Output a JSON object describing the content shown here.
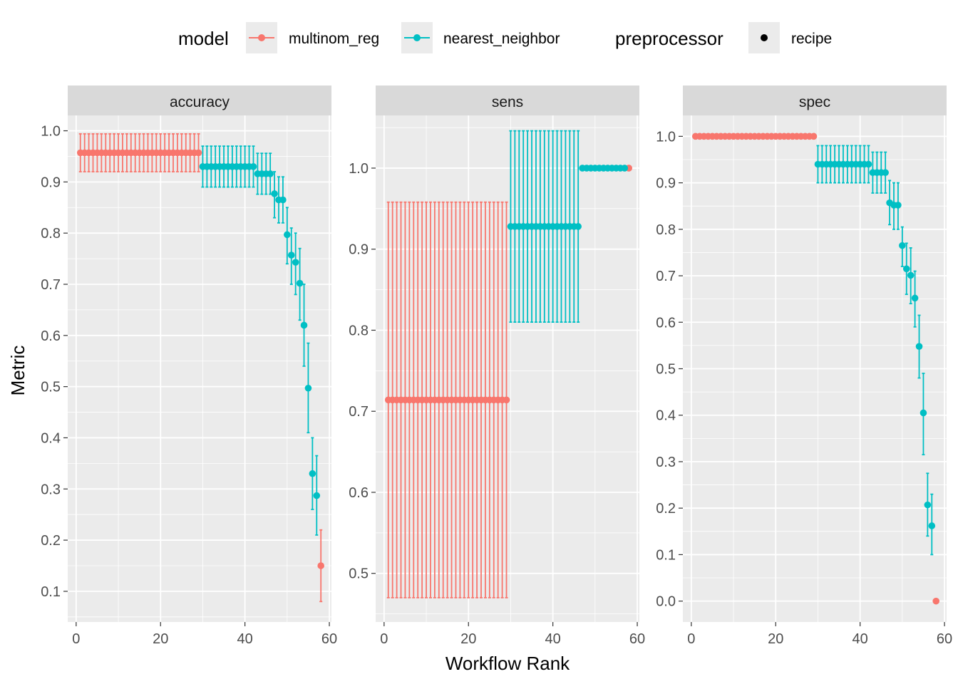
{
  "legend": {
    "model_title": "model",
    "model_items": [
      {
        "label": "multinom_reg",
        "color": "#F8766D"
      },
      {
        "label": "nearest_neighbor",
        "color": "#00BFC4"
      }
    ],
    "preprocessor_title": "preprocessor",
    "preprocessor_items": [
      {
        "label": "recipe",
        "color": "#000000"
      }
    ],
    "placement": "top"
  },
  "axis": {
    "xlabel": "Workflow Rank",
    "ylabel": "Metric"
  },
  "chart_data": [
    {
      "type": "scatter",
      "title": "accuracy",
      "xlim": [
        -2,
        60.5
      ],
      "ylim": [
        0.04,
        1.03
      ],
      "xticks": [
        0,
        20,
        40,
        60
      ],
      "yticks": [
        0.1,
        0.2,
        0.3,
        0.4,
        0.5,
        0.6,
        0.7,
        0.8,
        0.9,
        1.0
      ],
      "grid": true,
      "series": [
        {
          "name": "multinom_reg",
          "color": "#F8766D",
          "points": [
            {
              "x_from": 1,
              "x_to": 29,
              "y": 0.957,
              "lo": 0.92,
              "hi": 0.994
            },
            {
              "x": 58,
              "y": 0.15,
              "lo": 0.08,
              "hi": 0.22
            }
          ]
        },
        {
          "name": "nearest_neighbor",
          "color": "#00BFC4",
          "points": [
            {
              "x_from": 30,
              "x_to": 42,
              "y": 0.93,
              "lo": 0.89,
              "hi": 0.97
            },
            {
              "x_from": 43,
              "x_to": 46,
              "y": 0.916,
              "lo": 0.876,
              "hi": 0.956
            },
            {
              "x": 47,
              "y": 0.877,
              "lo": 0.83,
              "hi": 0.92
            },
            {
              "x": 48,
              "y": 0.865,
              "lo": 0.82,
              "hi": 0.91
            },
            {
              "x": 49,
              "y": 0.865,
              "lo": 0.82,
              "hi": 0.91
            },
            {
              "x": 50,
              "y": 0.797,
              "lo": 0.74,
              "hi": 0.85
            },
            {
              "x": 51,
              "y": 0.757,
              "lo": 0.7,
              "hi": 0.81
            },
            {
              "x": 52,
              "y": 0.743,
              "lo": 0.68,
              "hi": 0.8
            },
            {
              "x": 53,
              "y": 0.702,
              "lo": 0.63,
              "hi": 0.77
            },
            {
              "x": 54,
              "y": 0.62,
              "lo": 0.54,
              "hi": 0.7
            },
            {
              "x": 55,
              "y": 0.497,
              "lo": 0.41,
              "hi": 0.585
            },
            {
              "x": 56,
              "y": 0.33,
              "lo": 0.26,
              "hi": 0.4
            },
            {
              "x": 57,
              "y": 0.287,
              "lo": 0.21,
              "hi": 0.365
            }
          ]
        }
      ]
    },
    {
      "type": "scatter",
      "title": "sens",
      "xlim": [
        -2,
        60.5
      ],
      "ylim": [
        0.44,
        1.065
      ],
      "xticks": [
        0,
        20,
        40,
        60
      ],
      "yticks": [
        0.5,
        0.6,
        0.7,
        0.8,
        0.9,
        1.0
      ],
      "grid": true,
      "series": [
        {
          "name": "multinom_reg",
          "color": "#F8766D",
          "points": [
            {
              "x_from": 1,
              "x_to": 29,
              "y": 0.714,
              "lo": 0.47,
              "hi": 0.958
            },
            {
              "x": 58,
              "y": 1.0
            }
          ]
        },
        {
          "name": "nearest_neighbor",
          "color": "#00BFC4",
          "points": [
            {
              "x_from": 30,
              "x_to": 46,
              "y": 0.928,
              "lo": 0.81,
              "hi": 1.046
            },
            {
              "x_from": 47,
              "x_to": 57,
              "y": 1.0
            }
          ]
        }
      ]
    },
    {
      "type": "scatter",
      "title": "spec",
      "xlim": [
        -2,
        60.5
      ],
      "ylim": [
        -0.045,
        1.045
      ],
      "xticks": [
        0,
        20,
        40,
        60
      ],
      "yticks": [
        0.0,
        0.1,
        0.2,
        0.3,
        0.4,
        0.5,
        0.6,
        0.7,
        0.8,
        0.9,
        1.0
      ],
      "grid": true,
      "series": [
        {
          "name": "multinom_reg",
          "color": "#F8766D",
          "points": [
            {
              "x_from": 1,
              "x_to": 29,
              "y": 1.0
            },
            {
              "x": 58,
              "y": 0.0
            }
          ]
        },
        {
          "name": "nearest_neighbor",
          "color": "#00BFC4",
          "points": [
            {
              "x_from": 30,
              "x_to": 42,
              "y": 0.94,
              "lo": 0.9,
              "hi": 0.98
            },
            {
              "x_from": 43,
              "x_to": 46,
              "y": 0.922,
              "lo": 0.878,
              "hi": 0.966
            },
            {
              "x": 47,
              "y": 0.857,
              "lo": 0.81,
              "hi": 0.905
            },
            {
              "x": 48,
              "y": 0.852,
              "lo": 0.8,
              "hi": 0.9
            },
            {
              "x": 49,
              "y": 0.852,
              "lo": 0.8,
              "hi": 0.9
            },
            {
              "x": 50,
              "y": 0.765,
              "lo": 0.72,
              "hi": 0.805
            },
            {
              "x": 51,
              "y": 0.715,
              "lo": 0.66,
              "hi": 0.77
            },
            {
              "x": 52,
              "y": 0.701,
              "lo": 0.64,
              "hi": 0.76
            },
            {
              "x": 53,
              "y": 0.652,
              "lo": 0.59,
              "hi": 0.71
            },
            {
              "x": 54,
              "y": 0.548,
              "lo": 0.48,
              "hi": 0.615
            },
            {
              "x": 55,
              "y": 0.405,
              "lo": 0.315,
              "hi": 0.49
            },
            {
              "x": 56,
              "y": 0.207,
              "lo": 0.14,
              "hi": 0.275
            },
            {
              "x": 57,
              "y": 0.162,
              "lo": 0.1,
              "hi": 0.23
            }
          ]
        }
      ]
    }
  ]
}
